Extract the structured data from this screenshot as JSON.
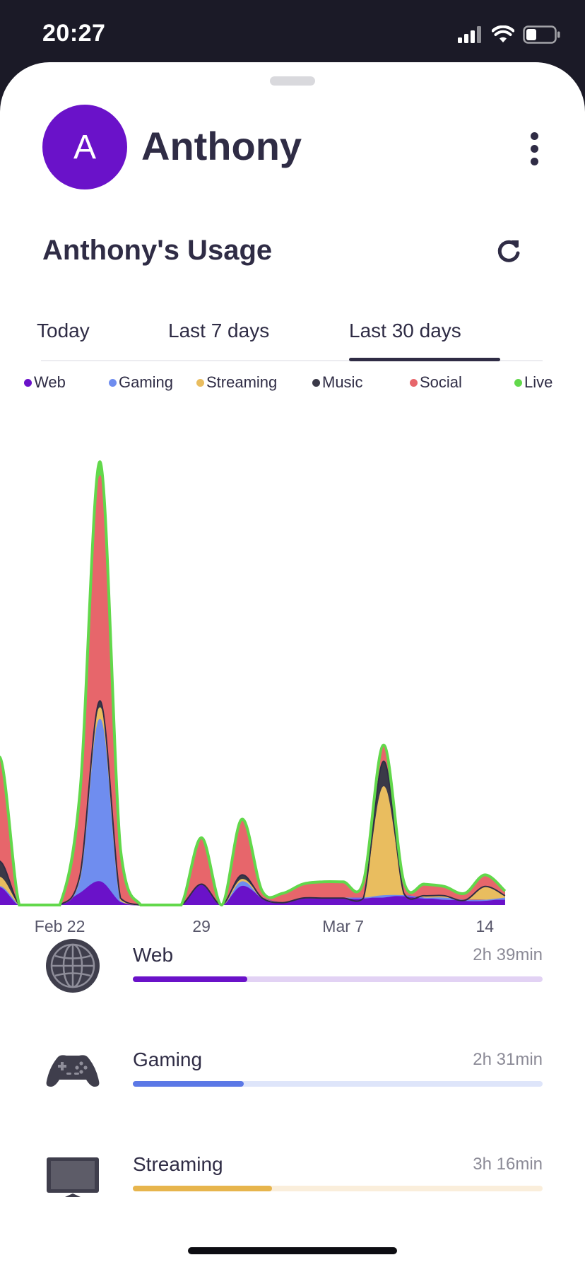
{
  "status": {
    "time": "20:27"
  },
  "profile": {
    "initial": "A",
    "name": "Anthony"
  },
  "usage": {
    "title": "Anthony's Usage"
  },
  "tabs": [
    {
      "label": "Today",
      "active": false
    },
    {
      "label": "Last 7 days",
      "active": false
    },
    {
      "label": "Last 30 days",
      "active": true
    }
  ],
  "colors": {
    "web": "#6a12c9",
    "gaming": "#6f8def",
    "streaming": "#e9bd5f",
    "music": "#3a3948",
    "social": "#e7666b",
    "live": "#62d84b"
  },
  "legend": [
    {
      "label": "Web",
      "color": "#6a12c9"
    },
    {
      "label": "Gaming",
      "color": "#6f8def"
    },
    {
      "label": "Streaming",
      "color": "#e9bd5f"
    },
    {
      "label": "Music",
      "color": "#3a3948"
    },
    {
      "label": "Social",
      "color": "#e7666b"
    },
    {
      "label": "Live",
      "color": "#62d84b"
    }
  ],
  "chart_data": {
    "type": "area",
    "stacked": true,
    "x_tick_labels": [
      "Feb 22",
      "29",
      "Mar 7",
      "14"
    ],
    "x": [
      "Feb 18",
      "Feb 19",
      "Feb 20",
      "Feb 21",
      "Feb 22",
      "Feb 23",
      "Feb 24",
      "Feb 25",
      "Feb 26",
      "Feb 27",
      "Feb 28",
      "Feb 29",
      "Mar 1",
      "Mar 2",
      "Mar 3",
      "Mar 4",
      "Mar 5",
      "Mar 6",
      "Mar 7",
      "Mar 8",
      "Mar 9",
      "Mar 10",
      "Mar 11",
      "Mar 12",
      "Mar 13",
      "Mar 14",
      "Mar 15"
    ],
    "series": [
      {
        "name": "Web",
        "values": [
          0,
          8,
          0,
          0,
          0,
          5,
          10,
          1,
          0,
          0,
          0,
          9,
          0,
          8,
          3,
          1,
          3,
          3,
          3,
          3,
          3,
          4,
          3,
          2,
          2,
          2,
          2
        ]
      },
      {
        "name": "Gaming",
        "values": [
          0,
          0,
          0,
          0,
          0,
          7,
          70,
          1,
          0,
          0,
          0,
          0,
          0,
          2,
          0,
          0,
          0,
          0,
          0,
          0,
          1,
          0,
          0,
          1,
          0,
          0,
          1
        ]
      },
      {
        "name": "Streaming",
        "values": [
          0,
          4,
          0,
          0,
          0,
          0,
          5,
          0,
          0,
          0,
          0,
          0,
          0,
          1,
          0,
          0,
          0,
          0,
          0,
          0,
          47,
          1,
          1,
          1,
          0,
          6,
          1
        ]
      },
      {
        "name": "Music",
        "values": [
          0,
          7,
          0,
          0,
          0,
          1,
          3,
          1,
          0,
          0,
          0,
          0,
          0,
          2,
          0,
          0,
          0,
          0,
          0,
          0,
          11,
          0,
          0,
          0,
          0,
          0,
          0
        ]
      },
      {
        "name": "Social",
        "values": [
          0,
          45,
          0,
          0,
          0,
          28,
          97,
          21,
          0,
          0,
          0,
          20,
          0,
          24,
          3,
          4,
          6,
          7,
          7,
          7,
          7,
          5,
          5,
          4,
          3,
          5,
          2
        ]
      },
      {
        "name": "Live",
        "values": [
          0,
          0,
          0,
          0,
          0,
          8,
          6,
          0,
          0,
          0,
          0,
          0,
          0,
          0,
          0,
          0,
          0,
          0,
          0,
          0,
          0,
          0,
          0,
          0,
          0,
          0,
          0
        ]
      }
    ],
    "ylim": [
      0,
      200
    ]
  },
  "categories": [
    {
      "label": "Web",
      "time": "2h 39min",
      "fraction": 0.28,
      "color": "#6a12c9",
      "track": "#e2d2f4",
      "icon": "globe-icon"
    },
    {
      "label": "Gaming",
      "time": "2h 31min",
      "fraction": 0.27,
      "color": "#5b78e6",
      "track": "#dee5fa",
      "icon": "gamepad-icon"
    },
    {
      "label": "Streaming",
      "time": "3h 16min",
      "fraction": 0.34,
      "color": "#e7b54d",
      "track": "#faeedb",
      "icon": "tv-icon"
    }
  ]
}
